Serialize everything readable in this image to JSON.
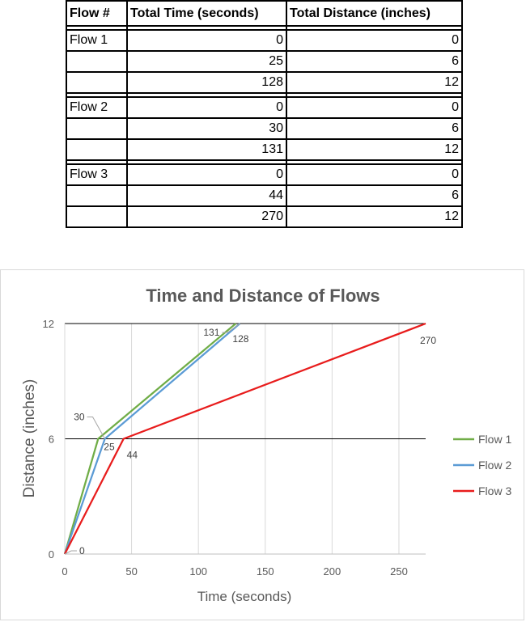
{
  "table": {
    "headers": [
      "Flow #",
      "Total Time (seconds)",
      "Total Distance (inches)"
    ],
    "groups": [
      {
        "flow": "Flow 1",
        "rows": [
          {
            "time": "0",
            "distance": "0"
          },
          {
            "time": "25",
            "distance": "6"
          },
          {
            "time": "128",
            "distance": "12"
          }
        ]
      },
      {
        "flow": "Flow 2",
        "rows": [
          {
            "time": "0",
            "distance": "0"
          },
          {
            "time": "30",
            "distance": "6"
          },
          {
            "time": "131",
            "distance": "12"
          }
        ]
      },
      {
        "flow": "Flow 3",
        "rows": [
          {
            "time": "0",
            "distance": "0"
          },
          {
            "time": "44",
            "distance": "6"
          },
          {
            "time": "270",
            "distance": "12"
          }
        ]
      }
    ]
  },
  "chart_data": {
    "type": "line",
    "title": "Time and Distance of Flows",
    "xlabel": "Time (seconds)",
    "ylabel": "Distance (inches)",
    "xlim": [
      0,
      270
    ],
    "ylim": [
      0,
      12
    ],
    "x_ticks": [
      0,
      50,
      100,
      150,
      200,
      250
    ],
    "y_ticks": [
      0,
      6,
      12
    ],
    "vertical_grid": true,
    "horizontal_lines": [
      6,
      12
    ],
    "legend_position": "right",
    "series": [
      {
        "name": "Flow 1",
        "color": "#70ad47",
        "points": [
          {
            "x": 0,
            "y": 0
          },
          {
            "x": 25,
            "y": 6
          },
          {
            "x": 128,
            "y": 12
          }
        ]
      },
      {
        "name": "Flow 2",
        "color": "#5b9bd5",
        "points": [
          {
            "x": 0,
            "y": 0
          },
          {
            "x": 30,
            "y": 6
          },
          {
            "x": 131,
            "y": 12
          }
        ]
      },
      {
        "name": "Flow 3",
        "color": "#e81c1c",
        "points": [
          {
            "x": 0,
            "y": 0
          },
          {
            "x": 44,
            "y": 6
          },
          {
            "x": 270,
            "y": 12
          }
        ]
      }
    ],
    "data_labels": [
      {
        "text": "0",
        "x": 0,
        "y": 0
      },
      {
        "text": "25",
        "x": 25,
        "y": 6
      },
      {
        "text": "30",
        "x": 30,
        "y": 6
      },
      {
        "text": "44",
        "x": 44,
        "y": 6
      },
      {
        "text": "128",
        "x": 128,
        "y": 12
      },
      {
        "text": "131",
        "x": 131,
        "y": 12
      },
      {
        "text": "270",
        "x": 270,
        "y": 12
      }
    ]
  }
}
